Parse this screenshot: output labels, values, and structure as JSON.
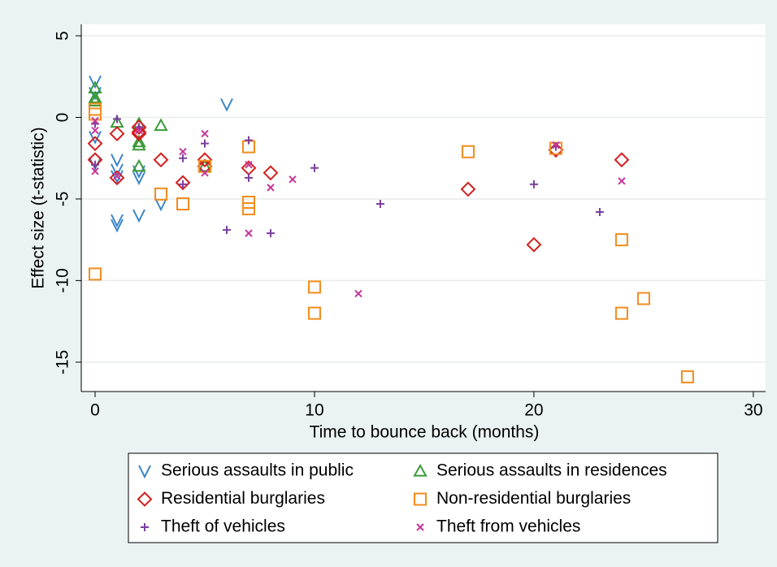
{
  "chart_data": {
    "type": "scatter",
    "x_label": "Time to bounce back (months)",
    "y_label": "Effect size (t-statistic)",
    "xlim": [
      -0.63,
      30.56
    ],
    "ylim": [
      -16.8,
      5.7
    ],
    "xticks": [
      0,
      10,
      20,
      30
    ],
    "yticks": [
      5,
      0,
      -5,
      -10,
      -15
    ],
    "grid": "y",
    "legend": "bottom",
    "series": [
      {
        "name": "Serious assaults in public",
        "color": "#3d86c6",
        "marker": "v",
        "x": [
          0,
          0,
          0,
          0,
          1,
          1,
          1,
          1,
          1,
          2,
          2,
          2,
          3,
          6
        ],
        "values": [
          2.2,
          1.5,
          -1.2,
          -2.8,
          -2.6,
          -3.2,
          -3.6,
          -6.3,
          -6.6,
          -3.3,
          -3.7,
          -6,
          -5.3,
          0.8
        ]
      },
      {
        "name": "Serious assaults in residences",
        "color": "#3a9a3a",
        "marker": "triangle",
        "x": [
          0,
          0,
          0,
          1,
          2,
          2,
          2,
          2,
          3,
          5
        ],
        "values": [
          1.8,
          1.2,
          1.0,
          -0.3,
          -0.4,
          -1.5,
          -1.7,
          -3,
          -0.5,
          -3
        ]
      },
      {
        "name": "Residential burglaries",
        "color": "#d41f1f",
        "marker": "diamond",
        "x": [
          0,
          0,
          1,
          1,
          2,
          2,
          2,
          3,
          4,
          5,
          5,
          7,
          8,
          17,
          20,
          21,
          24
        ],
        "values": [
          -1.6,
          -2.6,
          -1,
          -3.7,
          -0.6,
          -0.9,
          -1,
          -2.6,
          -4,
          -2.6,
          -3,
          -3.1,
          -3.4,
          -4.4,
          -7.8,
          -2,
          -2.6
        ]
      },
      {
        "name": "Non-residential burglaries",
        "color": "#f28c1c",
        "marker": "square",
        "x": [
          0,
          0,
          0,
          3,
          4,
          5,
          7,
          7,
          7,
          10,
          10,
          17,
          21,
          24,
          24,
          25,
          27
        ],
        "values": [
          0.5,
          0.2,
          -9.6,
          -4.7,
          -5.3,
          -3,
          -1.8,
          -5.2,
          -5.6,
          -10.4,
          -12,
          -2.1,
          -1.9,
          -7.5,
          -12,
          -11.1,
          -15.9
        ]
      },
      {
        "name": "Theft of vehicles",
        "color": "#7b3f9e",
        "marker": "plus",
        "x": [
          0,
          0,
          1,
          2,
          4,
          4,
          5,
          6,
          7,
          7,
          8,
          10,
          13,
          20,
          21,
          23
        ],
        "values": [
          -0.4,
          -2.9,
          -0.1,
          -0.6,
          -2.5,
          -4.1,
          -1.6,
          -6.9,
          -1.4,
          -3.7,
          -7.1,
          -3.1,
          -5.3,
          -4.1,
          -1.8,
          -5.8
        ]
      },
      {
        "name": "Theft from vehicles",
        "color": "#c4359a",
        "marker": "x",
        "x": [
          0,
          0,
          0,
          1,
          2,
          4,
          5,
          5,
          7,
          7,
          8,
          9,
          12,
          21,
          24
        ],
        "values": [
          -0.2,
          -0.8,
          -3.3,
          -3.6,
          -0.8,
          -2.1,
          -1,
          -3.4,
          -2.9,
          -7.1,
          -4.3,
          -3.8,
          -10.8,
          -1.7,
          -3.9
        ]
      }
    ]
  }
}
